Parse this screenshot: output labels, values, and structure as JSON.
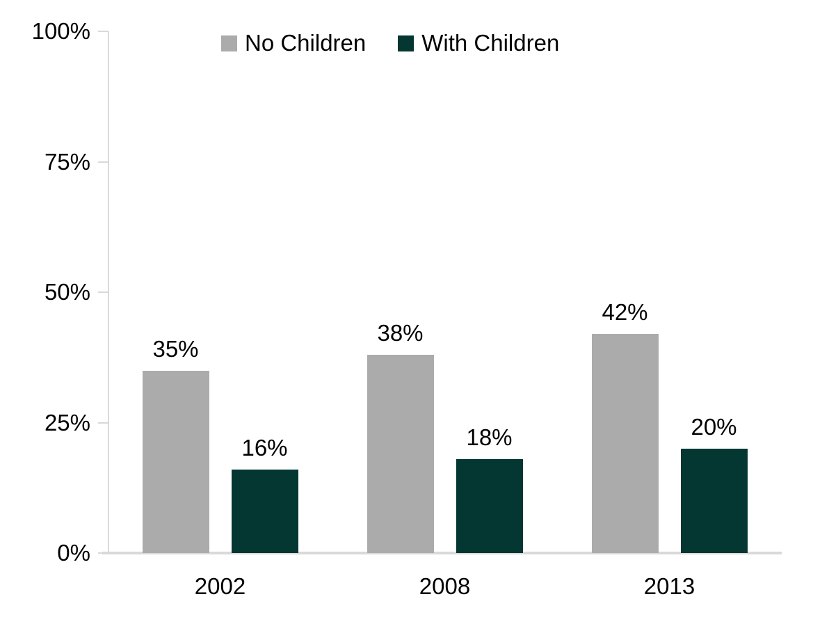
{
  "chart_data": {
    "type": "bar",
    "categories": [
      "2002",
      "2008",
      "2013"
    ],
    "series": [
      {
        "name": "No Children",
        "color": "#ababab",
        "values": [
          35,
          38,
          42
        ],
        "labels": [
          "35%",
          "38%",
          "42%"
        ]
      },
      {
        "name": "With Children",
        "color": "#043632",
        "values": [
          16,
          18,
          20
        ],
        "labels": [
          "16%",
          "18%",
          "20%"
        ]
      }
    ],
    "title": "",
    "xlabel": "",
    "ylabel": "",
    "ylim": [
      0,
      100
    ],
    "yticks": [
      {
        "value": 0,
        "label": "0%"
      },
      {
        "value": 25,
        "label": "25%"
      },
      {
        "value": 50,
        "label": "50%"
      },
      {
        "value": 75,
        "label": "75%"
      },
      {
        "value": 100,
        "label": "100%"
      }
    ],
    "grid": false,
    "legend_position": "top",
    "axis_color": "#d9d9d9",
    "text_color": "#000000"
  }
}
